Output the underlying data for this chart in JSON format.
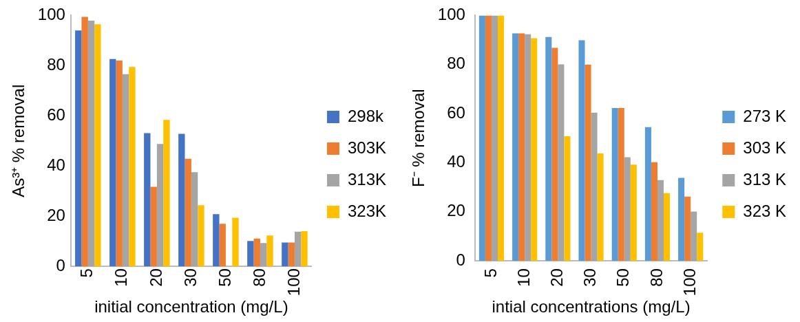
{
  "chart_data": [
    {
      "type": "bar",
      "xlabel": "initial concentration (mg/L)",
      "ylabel": "As³⁺ % removal",
      "categories": [
        "5",
        "10",
        "20",
        "30",
        "50",
        "80",
        "100"
      ],
      "ylim": [
        0,
        100
      ],
      "yticks": [
        0,
        20,
        40,
        60,
        80,
        100
      ],
      "legend": "right",
      "grid": false,
      "series": [
        {
          "name": "298k",
          "color": "#4472c4",
          "values": [
            94.0,
            82.6,
            53.1,
            52.8,
            20.8,
            10.1,
            9.5
          ]
        },
        {
          "name": "303K",
          "color": "#ed7d31",
          "values": [
            99.4,
            82.0,
            31.7,
            42.9,
            17.0,
            11.1,
            9.5
          ]
        },
        {
          "name": "313K",
          "color": "#a5a5a5",
          "values": [
            97.9,
            76.6,
            48.8,
            37.5,
            0,
            9.3,
            13.8
          ]
        },
        {
          "name": "323K",
          "color": "#ffc000",
          "values": [
            96.5,
            79.5,
            58.4,
            24.4,
            19.4,
            12.3,
            14.0
          ]
        }
      ]
    },
    {
      "type": "bar",
      "xlabel": "intial concentrations (mg/L)",
      "ylabel": "F⁻ % removal",
      "categories": [
        "5",
        "10",
        "20",
        "30",
        "50",
        "80",
        "100"
      ],
      "ylim": [
        0,
        100
      ],
      "yticks": [
        0,
        20,
        40,
        60,
        80,
        100
      ],
      "legend": "right",
      "grid": false,
      "series": [
        {
          "name": "273 K",
          "color": "#5b9bd5",
          "values": [
            100,
            92.7,
            91.2,
            89.9,
            62.3,
            54.5,
            33.8
          ]
        },
        {
          "name": "303 K",
          "color": "#ed7d31",
          "values": [
            100,
            92.7,
            86.8,
            79.9,
            62.3,
            40.2,
            26.2
          ]
        },
        {
          "name": "313 K",
          "color": "#a5a5a5",
          "values": [
            100,
            92.3,
            80.1,
            60.4,
            42.2,
            32.9,
            20.1
          ]
        },
        {
          "name": "323 K",
          "color": "#ffc000",
          "values": [
            100,
            90.7,
            50.8,
            43.8,
            39.2,
            27.6,
            11.5
          ]
        }
      ]
    }
  ]
}
